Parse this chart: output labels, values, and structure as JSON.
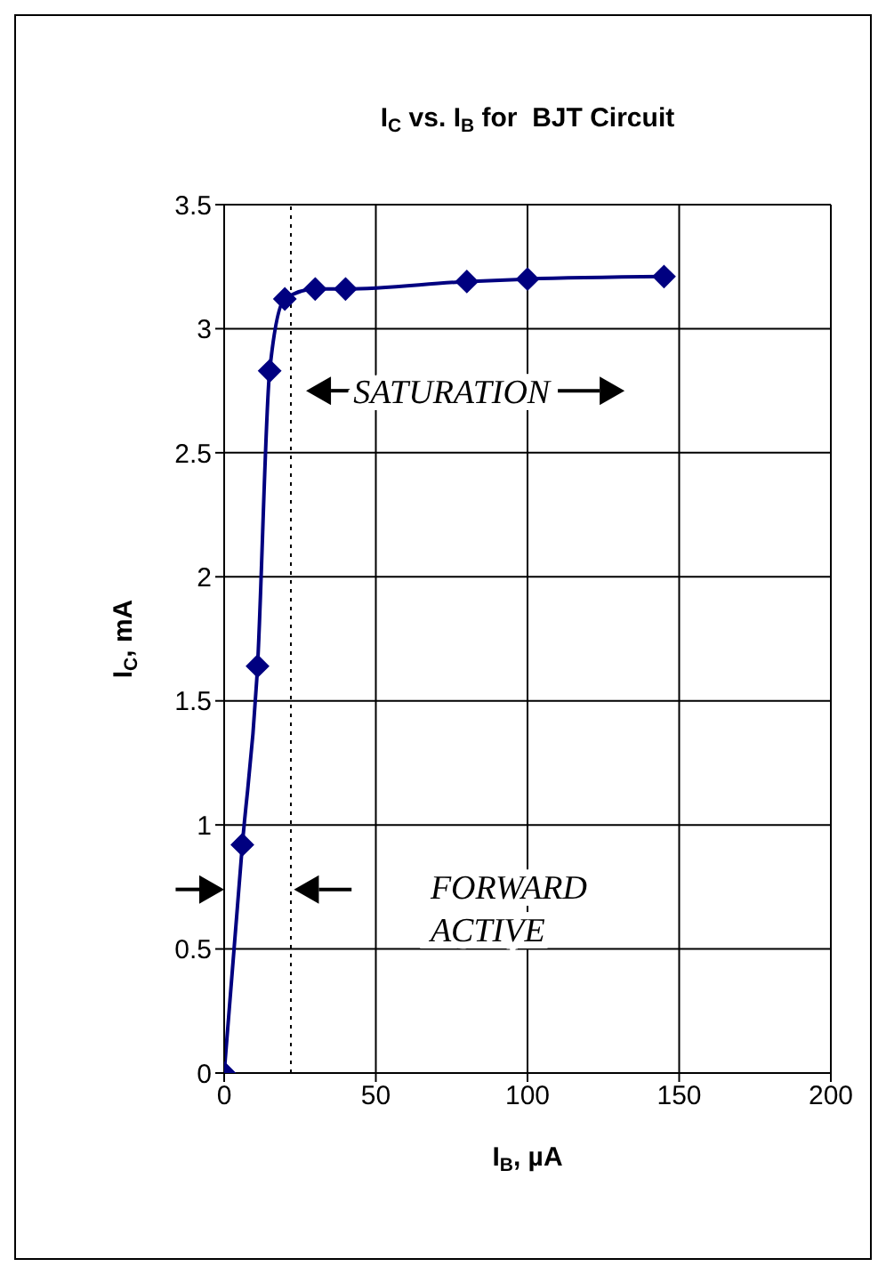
{
  "chart_data": {
    "type": "line",
    "title": "I$_{C}$ vs. I$_{B}$ for  BJT Circuit",
    "xlabel": "I$_{B}$, µA",
    "ylabel": "I$_{C}$, mA",
    "x": [
      0,
      6,
      11,
      15,
      20,
      30,
      40,
      80,
      100,
      145
    ],
    "series": [
      {
        "color": "#000080",
        "values": [
          0,
          0.92,
          1.64,
          2.83,
          3.12,
          3.16,
          3.16,
          3.19,
          3.2,
          3.21
        ]
      }
    ],
    "xlim": [
      0,
      200
    ],
    "xticks": [
      0,
      50,
      100,
      150,
      200
    ],
    "ylim": [
      0,
      3.5
    ],
    "yticks": [
      0,
      0.5,
      1,
      1.5,
      2,
      2.5,
      3,
      3.5
    ],
    "grid": true,
    "legend": false,
    "marker": "diamond",
    "line_style": "solid",
    "ref_lines": [
      {
        "axis": "x",
        "value": 22,
        "color": "#000000",
        "line_style": "dotted"
      }
    ],
    "annotations": [
      "SATURATION",
      "FORWARD ACTIVE"
    ]
  }
}
